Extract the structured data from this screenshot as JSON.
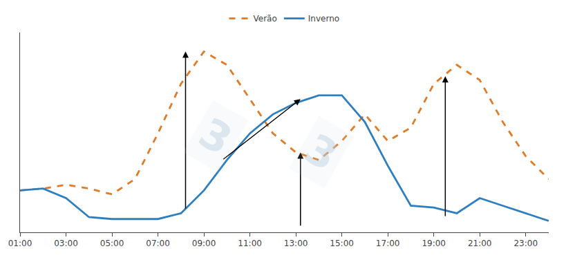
{
  "chart_data": {
    "type": "line",
    "x": [
      1,
      2,
      3,
      4,
      5,
      6,
      7,
      8,
      9,
      10,
      11,
      12,
      13,
      14,
      15,
      16,
      17,
      18,
      19,
      20,
      21,
      22,
      23,
      24
    ],
    "series": [
      {
        "name": "Verão",
        "color": "#e07b27",
        "line_style": "dashed",
        "values": [
          0.22,
          0.23,
          0.25,
          0.23,
          0.2,
          0.28,
          0.52,
          0.78,
          0.95,
          0.88,
          0.7,
          0.52,
          0.42,
          0.38,
          0.48,
          0.62,
          0.48,
          0.55,
          0.78,
          0.88,
          0.8,
          0.58,
          0.4,
          0.28
        ]
      },
      {
        "name": "Inverno",
        "color": "#2e7fbf",
        "line_style": "solid",
        "values": [
          0.22,
          0.23,
          0.18,
          0.08,
          0.07,
          0.07,
          0.07,
          0.1,
          0.22,
          0.38,
          0.52,
          0.62,
          0.68,
          0.72,
          0.72,
          0.58,
          0.35,
          0.14,
          0.13,
          0.1,
          0.18,
          0.14,
          0.1,
          0.06
        ]
      }
    ],
    "annotations": [
      {
        "x": 8.2,
        "y": 0.95,
        "x_from": 8.2,
        "y_from": 0.12
      },
      {
        "x": 13.2,
        "y": 0.7,
        "x_from": 9.8,
        "y_from": 0.38
      },
      {
        "x": 13.2,
        "y": 0.42,
        "x_from": 13.2,
        "y_from": 0.03
      },
      {
        "x": 19.5,
        "y": 0.82,
        "x_from": 19.5,
        "y_from": 0.08
      },
      {
        "text": "3"
      },
      {
        "text": "3"
      }
    ],
    "xlim": [
      1,
      24
    ],
    "ylim": [
      0,
      1.05
    ],
    "xticks": [
      {
        "value": 1,
        "label": "01:00"
      },
      {
        "value": 3,
        "label": "03:00"
      },
      {
        "value": 5,
        "label": "05:00"
      },
      {
        "value": 7,
        "label": "07:00"
      },
      {
        "value": 9,
        "label": "09:00"
      },
      {
        "value": 11,
        "label": "11:00"
      },
      {
        "value": 13,
        "label": "13:00"
      },
      {
        "value": 15,
        "label": "15:00"
      },
      {
        "value": 17,
        "label": "17:00"
      },
      {
        "value": 19,
        "label": "19:00"
      },
      {
        "value": 21,
        "label": "21:00"
      },
      {
        "value": 23,
        "label": "23:00"
      }
    ],
    "yticks": [],
    "tick_labels": "x",
    "grid": false,
    "legend": "upper center"
  }
}
